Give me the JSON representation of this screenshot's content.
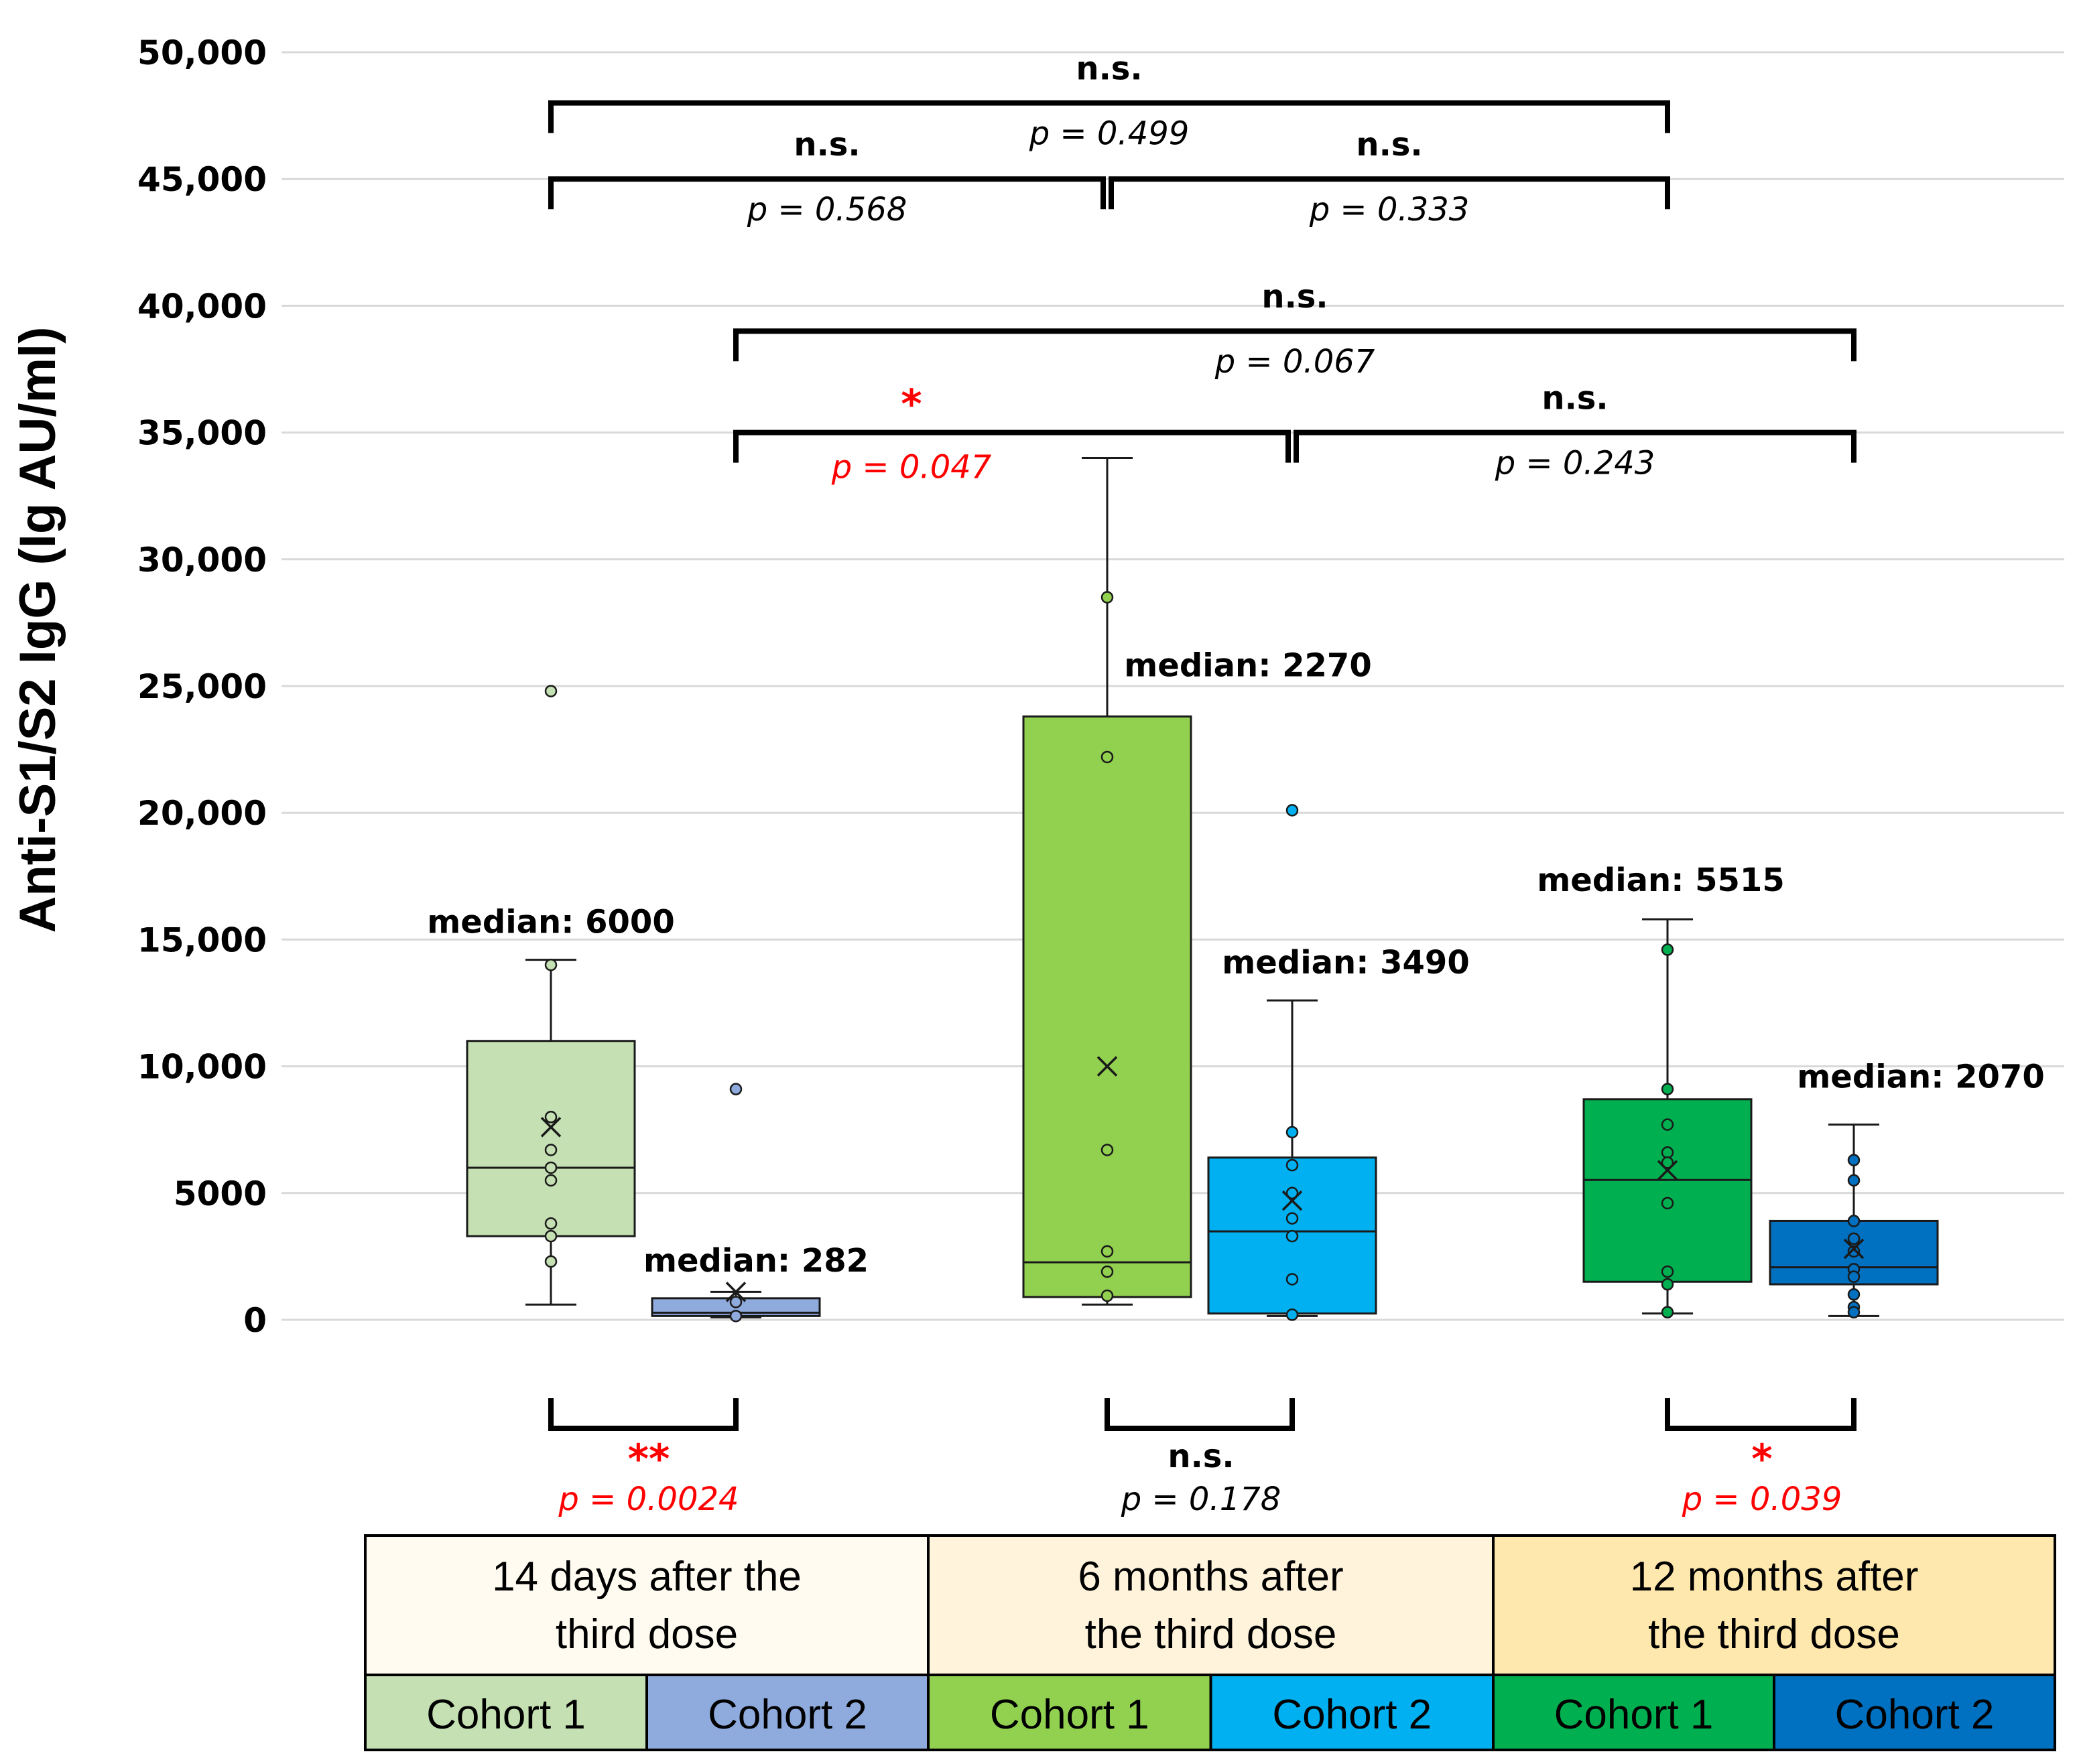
{
  "chart_data": {
    "type": "box",
    "ylabel": "Anti-S1/S2 IgG (Ig AU/ml)",
    "ylim": [
      0,
      50000
    ],
    "yticks": [
      0,
      5000,
      10000,
      15000,
      20000,
      25000,
      30000,
      35000,
      40000,
      45000,
      50000
    ],
    "ytick_labels": [
      "0",
      "5000",
      "10,000",
      "15,000",
      "20,000",
      "25,000",
      "30,000",
      "35,000",
      "40,000",
      "45,000",
      "50,000"
    ],
    "grid": true,
    "groups": [
      {
        "label": "14 days after the third dose",
        "header_lines": [
          "14 days after the",
          "third dose"
        ],
        "color": "#fffbf0"
      },
      {
        "label": "6 months after the third dose",
        "header_lines": [
          "6 months after",
          "the third dose"
        ],
        "color": "#fff3dc"
      },
      {
        "label": "12 months after the third dose",
        "header_lines": [
          "12 months after",
          "the third dose"
        ],
        "color": "#ffe8ad"
      }
    ],
    "series": [
      {
        "cohort": "Cohort 1",
        "group": 0,
        "color": "#c5e0b3",
        "dot_color": "#c5e0b3",
        "whisker_low": 600,
        "q1": 3300,
        "median": 6000,
        "q3": 11000,
        "whisker_high": 14200,
        "mean": 7600,
        "points": [
          24800,
          14000,
          8000,
          6700,
          6000,
          5500,
          3800,
          3300,
          2300
        ],
        "median_label": "median: 6000"
      },
      {
        "cohort": "Cohort 2",
        "group": 0,
        "color": "#8faadc",
        "dot_color": "#8faadc",
        "whisker_low": 100,
        "q1": 150,
        "median": 282,
        "q3": 850,
        "whisker_high": 1100,
        "mean": 1100,
        "points": [
          9100,
          700,
          150
        ],
        "median_label": "median: 282"
      },
      {
        "cohort": "Cohort 1",
        "group": 1,
        "color": "#92d050",
        "dot_color": "#92d050",
        "whisker_low": 600,
        "q1": 900,
        "median": 2270,
        "q3": 23800,
        "whisker_high": 34000,
        "mean": 10000,
        "points": [
          28500,
          22200,
          6700,
          2700,
          1900,
          950
        ],
        "median_label": "median: 2270"
      },
      {
        "cohort": "Cohort 2",
        "group": 1,
        "color": "#00b0f0",
        "dot_color": "#00b0f0",
        "whisker_low": 150,
        "q1": 250,
        "median": 3490,
        "q3": 6400,
        "whisker_high": 12600,
        "mean": 4700,
        "points": [
          20100,
          7400,
          6100,
          5000,
          4000,
          3300,
          1600,
          200
        ],
        "median_label": "median: 3490"
      },
      {
        "cohort": "Cohort 1",
        "group": 2,
        "color": "#00b050",
        "dot_color": "#00b050",
        "whisker_low": 250,
        "q1": 1500,
        "median": 5515,
        "q3": 8700,
        "whisker_high": 15800,
        "mean": 5900,
        "points": [
          14600,
          9100,
          7700,
          6600,
          6200,
          4600,
          1900,
          1400,
          300
        ],
        "median_label": "median: 5515"
      },
      {
        "cohort": "Cohort 2",
        "group": 2,
        "color": "#0070c0",
        "dot_color": "#0070c0",
        "whisker_low": 150,
        "q1": 1400,
        "median": 2070,
        "q3": 3900,
        "whisker_high": 7700,
        "mean": 2800,
        "points": [
          6300,
          5500,
          3900,
          3200,
          2700,
          2000,
          1700,
          1000,
          500,
          300
        ],
        "median_label": "median: 2070"
      }
    ],
    "comparisons_top": [
      {
        "from": 0,
        "to": 4,
        "level": 48000,
        "label": "n.s.",
        "p": "p = 0.499",
        "significant": false
      },
      {
        "from": 0,
        "to": 2,
        "level": 45000,
        "label": "n.s.",
        "p": "p = 0.568",
        "significant": false
      },
      {
        "from": 2,
        "to": 4,
        "level": 45000,
        "label": "n.s.",
        "p": "p = 0.333",
        "significant": false
      },
      {
        "from": 1,
        "to": 5,
        "level": 39000,
        "label": "n.s.",
        "p": "p = 0.067",
        "significant": false
      },
      {
        "from": 1,
        "to": 3,
        "level": 35000,
        "label": "*",
        "p": "p = 0.047",
        "significant": true
      },
      {
        "from": 3,
        "to": 5,
        "level": 35000,
        "label": "n.s.",
        "p": "p = 0.243",
        "significant": false
      }
    ],
    "comparisons_bottom": [
      {
        "group": 0,
        "label": "**",
        "p": "p = 0.0024",
        "significant": true
      },
      {
        "group": 1,
        "label": "n.s.",
        "p": "p = 0.178",
        "significant": false
      },
      {
        "group": 2,
        "label": "*",
        "p": "p = 0.039",
        "significant": true
      }
    ]
  }
}
